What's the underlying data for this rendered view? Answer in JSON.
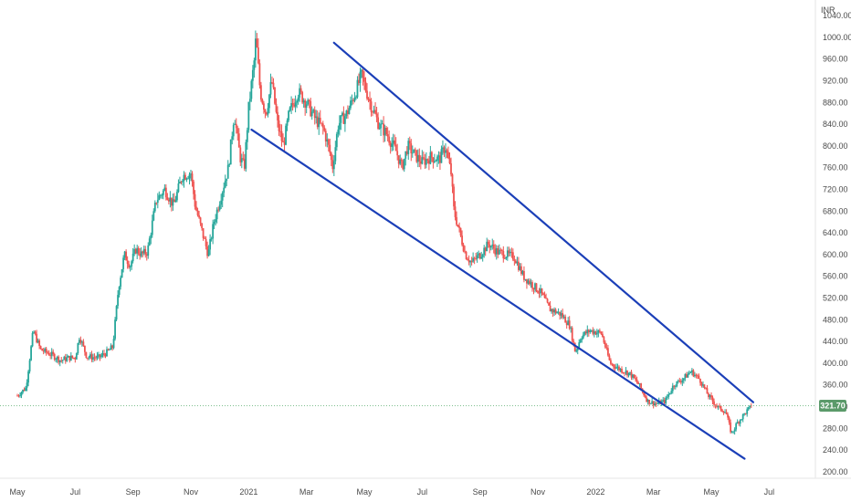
{
  "chart_data": {
    "type": "candlestick",
    "currency_label": "INR",
    "current_price": "321.70",
    "y_ticks": [
      "1040.00",
      "1000.00",
      "960.00",
      "920.00",
      "880.00",
      "840.00",
      "800.00",
      "760.00",
      "720.00",
      "680.00",
      "640.00",
      "600.00",
      "560.00",
      "520.00",
      "480.00",
      "440.00",
      "400.00",
      "360.00",
      "320.00",
      "280.00",
      "240.00",
      "200.00"
    ],
    "ylim": [
      188,
      1062
    ],
    "x_ticks": [
      "May",
      "Jul",
      "Sep",
      "Nov",
      "2021",
      "Mar",
      "May",
      "Jul",
      "Sep",
      "Nov",
      "2022",
      "Mar",
      "May",
      "Jul"
    ],
    "x_tick_months": [
      0,
      2,
      4,
      6,
      8,
      10,
      12,
      14,
      16,
      18,
      20,
      22,
      24,
      26
    ],
    "xlim_months": [
      -0.6,
      27.6
    ],
    "grid": false,
    "price_path": [
      {
        "m": 0.0,
        "p": 340
      },
      {
        "m": 0.3,
        "p": 355
      },
      {
        "m": 0.55,
        "p": 460
      },
      {
        "m": 0.8,
        "p": 425
      },
      {
        "m": 1.2,
        "p": 415
      },
      {
        "m": 1.5,
        "p": 405
      },
      {
        "m": 1.8,
        "p": 410
      },
      {
        "m": 2.0,
        "p": 410
      },
      {
        "m": 2.15,
        "p": 450
      },
      {
        "m": 2.4,
        "p": 412
      },
      {
        "m": 2.8,
        "p": 410
      },
      {
        "m": 3.1,
        "p": 420
      },
      {
        "m": 3.3,
        "p": 430
      },
      {
        "m": 3.5,
        "p": 540
      },
      {
        "m": 3.7,
        "p": 600
      },
      {
        "m": 3.9,
        "p": 580
      },
      {
        "m": 4.1,
        "p": 610
      },
      {
        "m": 4.3,
        "p": 600
      },
      {
        "m": 4.5,
        "p": 605
      },
      {
        "m": 4.8,
        "p": 700
      },
      {
        "m": 5.1,
        "p": 720
      },
      {
        "m": 5.4,
        "p": 690
      },
      {
        "m": 5.7,
        "p": 745
      },
      {
        "m": 6.0,
        "p": 750
      },
      {
        "m": 6.15,
        "p": 690
      },
      {
        "m": 6.4,
        "p": 640
      },
      {
        "m": 6.6,
        "p": 600
      },
      {
        "m": 6.8,
        "p": 660
      },
      {
        "m": 7.0,
        "p": 700
      },
      {
        "m": 7.3,
        "p": 760
      },
      {
        "m": 7.5,
        "p": 860
      },
      {
        "m": 7.7,
        "p": 780
      },
      {
        "m": 7.85,
        "p": 760
      },
      {
        "m": 8.0,
        "p": 870
      },
      {
        "m": 8.2,
        "p": 960
      },
      {
        "m": 8.25,
        "p": 1000
      },
      {
        "m": 8.4,
        "p": 900
      },
      {
        "m": 8.6,
        "p": 860
      },
      {
        "m": 8.8,
        "p": 920
      },
      {
        "m": 9.0,
        "p": 840
      },
      {
        "m": 9.2,
        "p": 800
      },
      {
        "m": 9.4,
        "p": 860
      },
      {
        "m": 9.7,
        "p": 900
      },
      {
        "m": 10.0,
        "p": 880
      },
      {
        "m": 10.3,
        "p": 850
      },
      {
        "m": 10.6,
        "p": 830
      },
      {
        "m": 10.8,
        "p": 790
      },
      {
        "m": 10.9,
        "p": 760
      },
      {
        "m": 11.1,
        "p": 840
      },
      {
        "m": 11.4,
        "p": 860
      },
      {
        "m": 11.7,
        "p": 900
      },
      {
        "m": 11.9,
        "p": 930
      },
      {
        "m": 12.2,
        "p": 880
      },
      {
        "m": 12.5,
        "p": 840
      },
      {
        "m": 12.8,
        "p": 820
      },
      {
        "m": 13.1,
        "p": 790
      },
      {
        "m": 13.3,
        "p": 760
      },
      {
        "m": 13.5,
        "p": 800
      },
      {
        "m": 13.8,
        "p": 780
      },
      {
        "m": 14.0,
        "p": 770
      },
      {
        "m": 14.3,
        "p": 780
      },
      {
        "m": 14.6,
        "p": 775
      },
      {
        "m": 14.8,
        "p": 800
      },
      {
        "m": 15.0,
        "p": 750
      },
      {
        "m": 15.1,
        "p": 680
      },
      {
        "m": 15.3,
        "p": 640
      },
      {
        "m": 15.5,
        "p": 600
      },
      {
        "m": 15.7,
        "p": 585
      },
      {
        "m": 16.0,
        "p": 600
      },
      {
        "m": 16.3,
        "p": 620
      },
      {
        "m": 16.6,
        "p": 605
      },
      {
        "m": 16.9,
        "p": 600
      },
      {
        "m": 17.2,
        "p": 595
      },
      {
        "m": 17.5,
        "p": 560
      },
      {
        "m": 17.8,
        "p": 545
      },
      {
        "m": 18.1,
        "p": 530
      },
      {
        "m": 18.4,
        "p": 500
      },
      {
        "m": 18.8,
        "p": 490
      },
      {
        "m": 19.1,
        "p": 470
      },
      {
        "m": 19.3,
        "p": 420
      },
      {
        "m": 19.5,
        "p": 450
      },
      {
        "m": 19.8,
        "p": 460
      },
      {
        "m": 20.2,
        "p": 455
      },
      {
        "m": 20.5,
        "p": 400
      },
      {
        "m": 20.8,
        "p": 390
      },
      {
        "m": 21.2,
        "p": 380
      },
      {
        "m": 21.5,
        "p": 360
      },
      {
        "m": 21.8,
        "p": 330
      },
      {
        "m": 22.1,
        "p": 325
      },
      {
        "m": 22.4,
        "p": 330
      },
      {
        "m": 22.7,
        "p": 360
      },
      {
        "m": 23.0,
        "p": 370
      },
      {
        "m": 23.3,
        "p": 385
      },
      {
        "m": 23.6,
        "p": 370
      },
      {
        "m": 23.9,
        "p": 340
      },
      {
        "m": 24.2,
        "p": 320
      },
      {
        "m": 24.5,
        "p": 310
      },
      {
        "m": 24.7,
        "p": 270
      },
      {
        "m": 24.9,
        "p": 290
      },
      {
        "m": 25.2,
        "p": 310
      },
      {
        "m": 25.4,
        "p": 321.7
      }
    ],
    "trendlines": [
      {
        "name": "upper",
        "from": {
          "m": 10.95,
          "p": 990
        },
        "to": {
          "m": 25.45,
          "p": 328
        }
      },
      {
        "name": "lower",
        "from": {
          "m": 8.1,
          "p": 830
        },
        "to": {
          "m": 25.15,
          "p": 224
        }
      }
    ],
    "colors": {
      "up": "#26a69a",
      "down": "#ef5350",
      "trendline": "#1b3fb8",
      "price_tag": "#5b9a6a",
      "price_line": "#7fbf8f"
    }
  }
}
